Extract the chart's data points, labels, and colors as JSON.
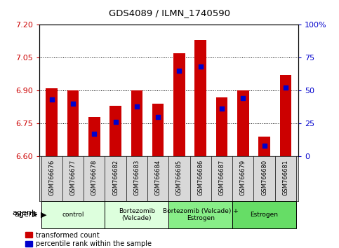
{
  "title": "GDS4089 / ILMN_1740590",
  "samples": [
    "GSM766676",
    "GSM766677",
    "GSM766678",
    "GSM766682",
    "GSM766683",
    "GSM766684",
    "GSM766685",
    "GSM766686",
    "GSM766687",
    "GSM766679",
    "GSM766680",
    "GSM766681"
  ],
  "transformed_count": [
    6.91,
    6.9,
    6.78,
    6.83,
    6.9,
    6.84,
    7.07,
    7.13,
    6.87,
    6.9,
    6.69,
    6.97
  ],
  "percentile_rank": [
    43,
    40,
    17,
    26,
    38,
    30,
    65,
    68,
    36,
    44,
    8,
    52
  ],
  "ylim_left": [
    6.6,
    7.2
  ],
  "ylim_right": [
    0,
    100
  ],
  "yticks_left": [
    6.6,
    6.75,
    6.9,
    7.05,
    7.2
  ],
  "yticks_right": [
    0,
    25,
    50,
    75,
    100
  ],
  "ytick_labels_right": [
    "0",
    "25",
    "50",
    "75",
    "100%"
  ],
  "bar_color": "#cc0000",
  "blue_color": "#0000cc",
  "bar_bottom": 6.6,
  "groups": [
    {
      "label": "control",
      "start": 0,
      "end": 3,
      "color": "#ddffdd"
    },
    {
      "label": "Bortezomib\n(Velcade)",
      "start": 3,
      "end": 6,
      "color": "#ddffdd"
    },
    {
      "label": "Bortezomib (Velcade) +\nEstrogen",
      "start": 6,
      "end": 9,
      "color": "#88ee88"
    },
    {
      "label": "Estrogen",
      "start": 9,
      "end": 12,
      "color": "#66dd66"
    }
  ],
  "tick_label_color_left": "#cc0000",
  "tick_label_color_right": "#0000cc",
  "legend_items": [
    {
      "color": "#cc0000",
      "label": "transformed count"
    },
    {
      "color": "#0000cc",
      "label": "percentile rank within the sample"
    }
  ]
}
